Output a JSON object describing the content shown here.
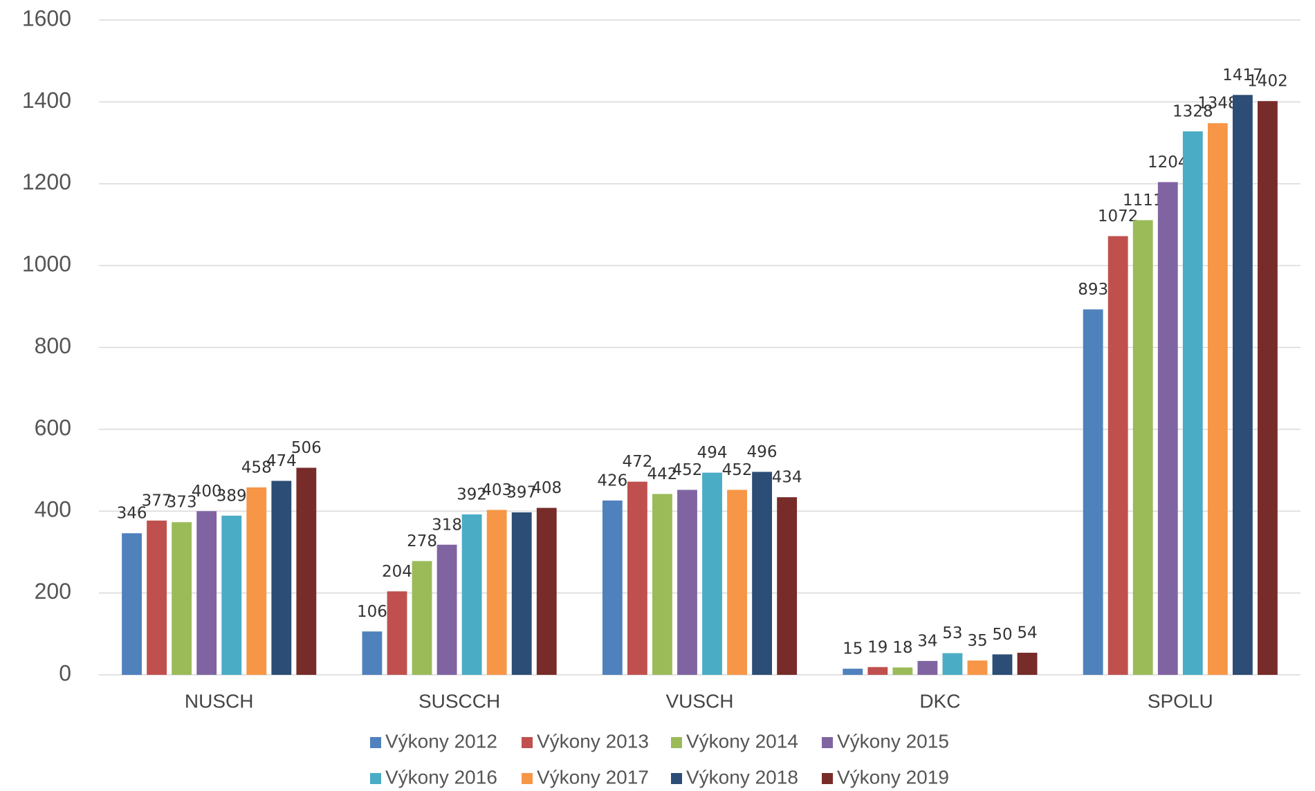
{
  "chart_data": {
    "type": "bar",
    "categories": [
      "NUSCH",
      "SUSCCH",
      "VUSCH",
      "DKC",
      "SPOLU"
    ],
    "series": [
      {
        "name": "Výkony 2012",
        "color": "#4f81bd",
        "values": [
          346,
          106,
          426,
          15,
          893
        ]
      },
      {
        "name": "Výkony 2013",
        "color": "#c0504d",
        "values": [
          377,
          204,
          472,
          19,
          1072
        ]
      },
      {
        "name": "Výkony 2014",
        "color": "#9bbb59",
        "values": [
          373,
          278,
          442,
          18,
          1111
        ]
      },
      {
        "name": "Výkony 2015",
        "color": "#8064a2",
        "values": [
          400,
          318,
          452,
          34,
          1204
        ]
      },
      {
        "name": "Výkony 2016",
        "color": "#4bacc6",
        "values": [
          389,
          392,
          494,
          53,
          1328
        ]
      },
      {
        "name": "Výkony 2017",
        "color": "#f79646",
        "values": [
          458,
          403,
          452,
          35,
          1348
        ]
      },
      {
        "name": "Výkony 2018",
        "color": "#2c4d75",
        "values": [
          474,
          397,
          496,
          50,
          1417
        ]
      },
      {
        "name": "Výkony 2019",
        "color": "#772c2a",
        "values": [
          506,
          408,
          434,
          54,
          1402
        ]
      }
    ],
    "ylim": [
      0,
      1600
    ],
    "yticks": [
      0,
      200,
      400,
      600,
      800,
      1000,
      1200,
      1400,
      1600
    ],
    "grid": true,
    "legend": "bottom"
  }
}
